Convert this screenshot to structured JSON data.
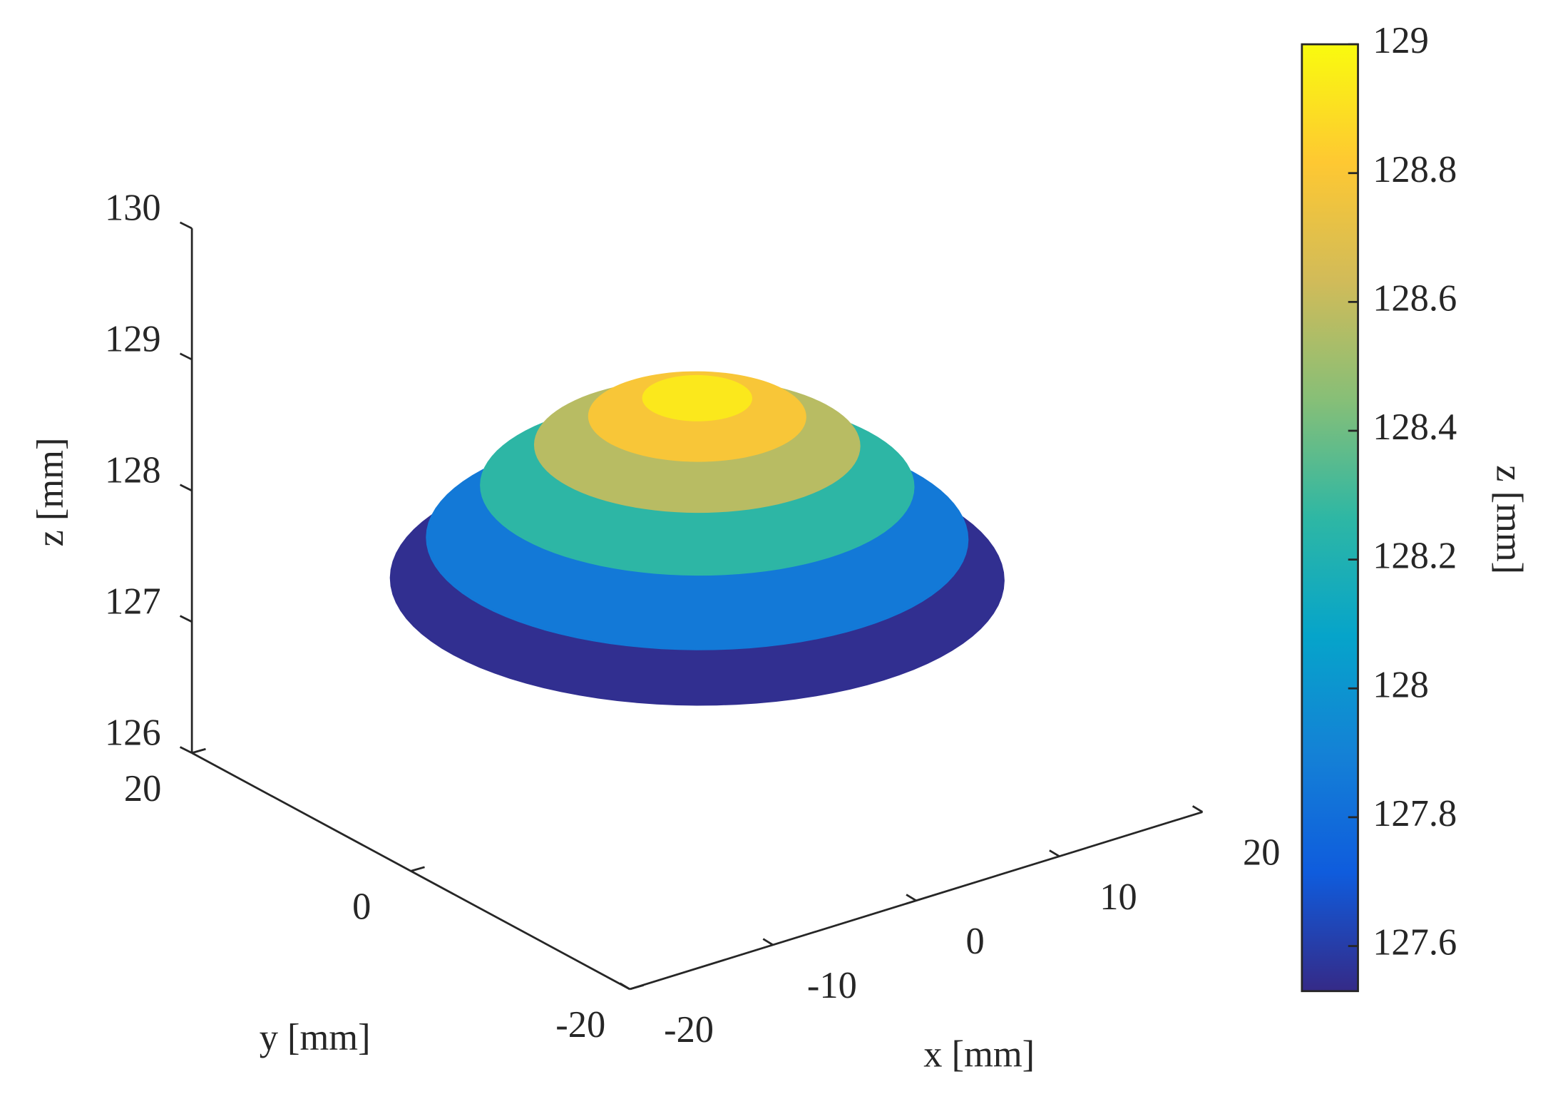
{
  "chart_data": {
    "type": "surface3d",
    "xlabel": "x [mm]",
    "ylabel": "y [mm]",
    "zlabel": "z [mm]",
    "xlim": [
      -20,
      20
    ],
    "ylim": [
      -20,
      20
    ],
    "zlim": [
      126,
      130
    ],
    "xticks": [
      -20,
      -10,
      0,
      10,
      20
    ],
    "yticks": [
      -20,
      0,
      20
    ],
    "zticks": [
      126,
      127,
      128,
      129,
      130
    ],
    "surface": {
      "r": [
        0,
        3,
        6,
        9,
        12,
        15,
        17
      ],
      "z": [
        128.97,
        128.93,
        128.79,
        128.57,
        128.26,
        127.86,
        127.55
      ]
    },
    "colorbar": {
      "label": "z [mm]",
      "clim": [
        127.53,
        129
      ],
      "ticks": [
        127.6,
        127.8,
        128,
        128.2,
        128.4,
        128.6,
        128.8,
        129
      ],
      "colormap": [
        "#352a87",
        "#0f5cdd",
        "#1481d6",
        "#06a4ca",
        "#2eb7a4",
        "#87bf77",
        "#d1bb59",
        "#fec832",
        "#f9fb0e"
      ]
    }
  }
}
